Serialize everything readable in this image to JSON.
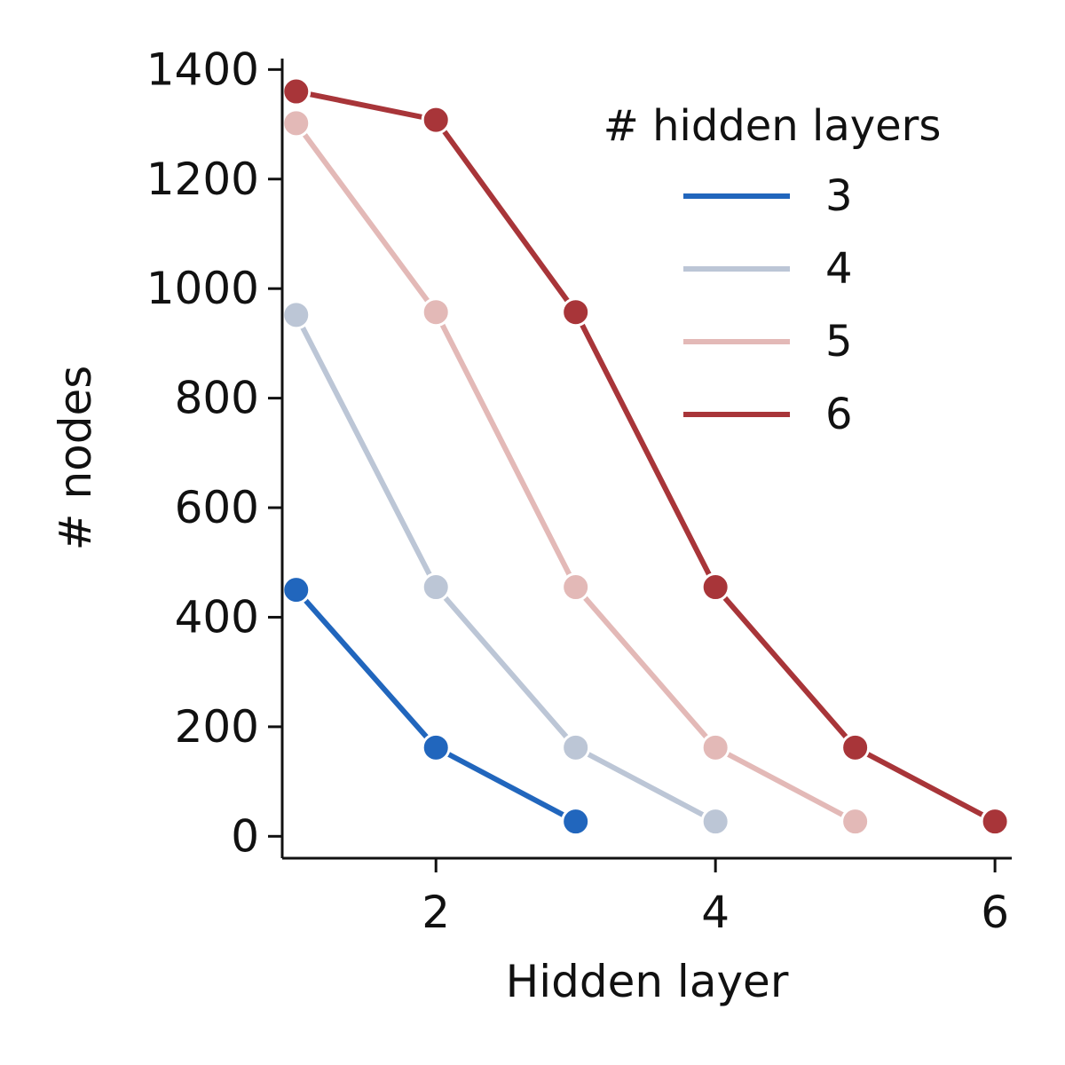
{
  "chart_data": {
    "type": "line",
    "xlabel": "Hidden layer",
    "ylabel": "# nodes",
    "xlim": [
      0.9,
      6.12
    ],
    "ylim": [
      -40,
      1420
    ],
    "xticks": [
      2,
      4,
      6
    ],
    "yticks": [
      0,
      200,
      400,
      600,
      800,
      1000,
      1200,
      1400
    ],
    "grid": false,
    "legend": {
      "title": "# hidden layers",
      "position": "top-right"
    },
    "series": [
      {
        "name": "3",
        "color": "#2166bd",
        "x": [
          1,
          2,
          3
        ],
        "y": [
          450,
          162,
          27
        ]
      },
      {
        "name": "4",
        "color": "#bcc6d6",
        "x": [
          1,
          2,
          3,
          4
        ],
        "y": [
          952,
          455,
          162,
          27
        ]
      },
      {
        "name": "5",
        "color": "#e3b9b7",
        "x": [
          1,
          2,
          3,
          4,
          5
        ],
        "y": [
          1302,
          957,
          455,
          162,
          27
        ]
      },
      {
        "name": "6",
        "color": "#a83539",
        "x": [
          1,
          2,
          3,
          4,
          5,
          6
        ],
        "y": [
          1360,
          1308,
          957,
          455,
          162,
          27
        ]
      }
    ]
  }
}
